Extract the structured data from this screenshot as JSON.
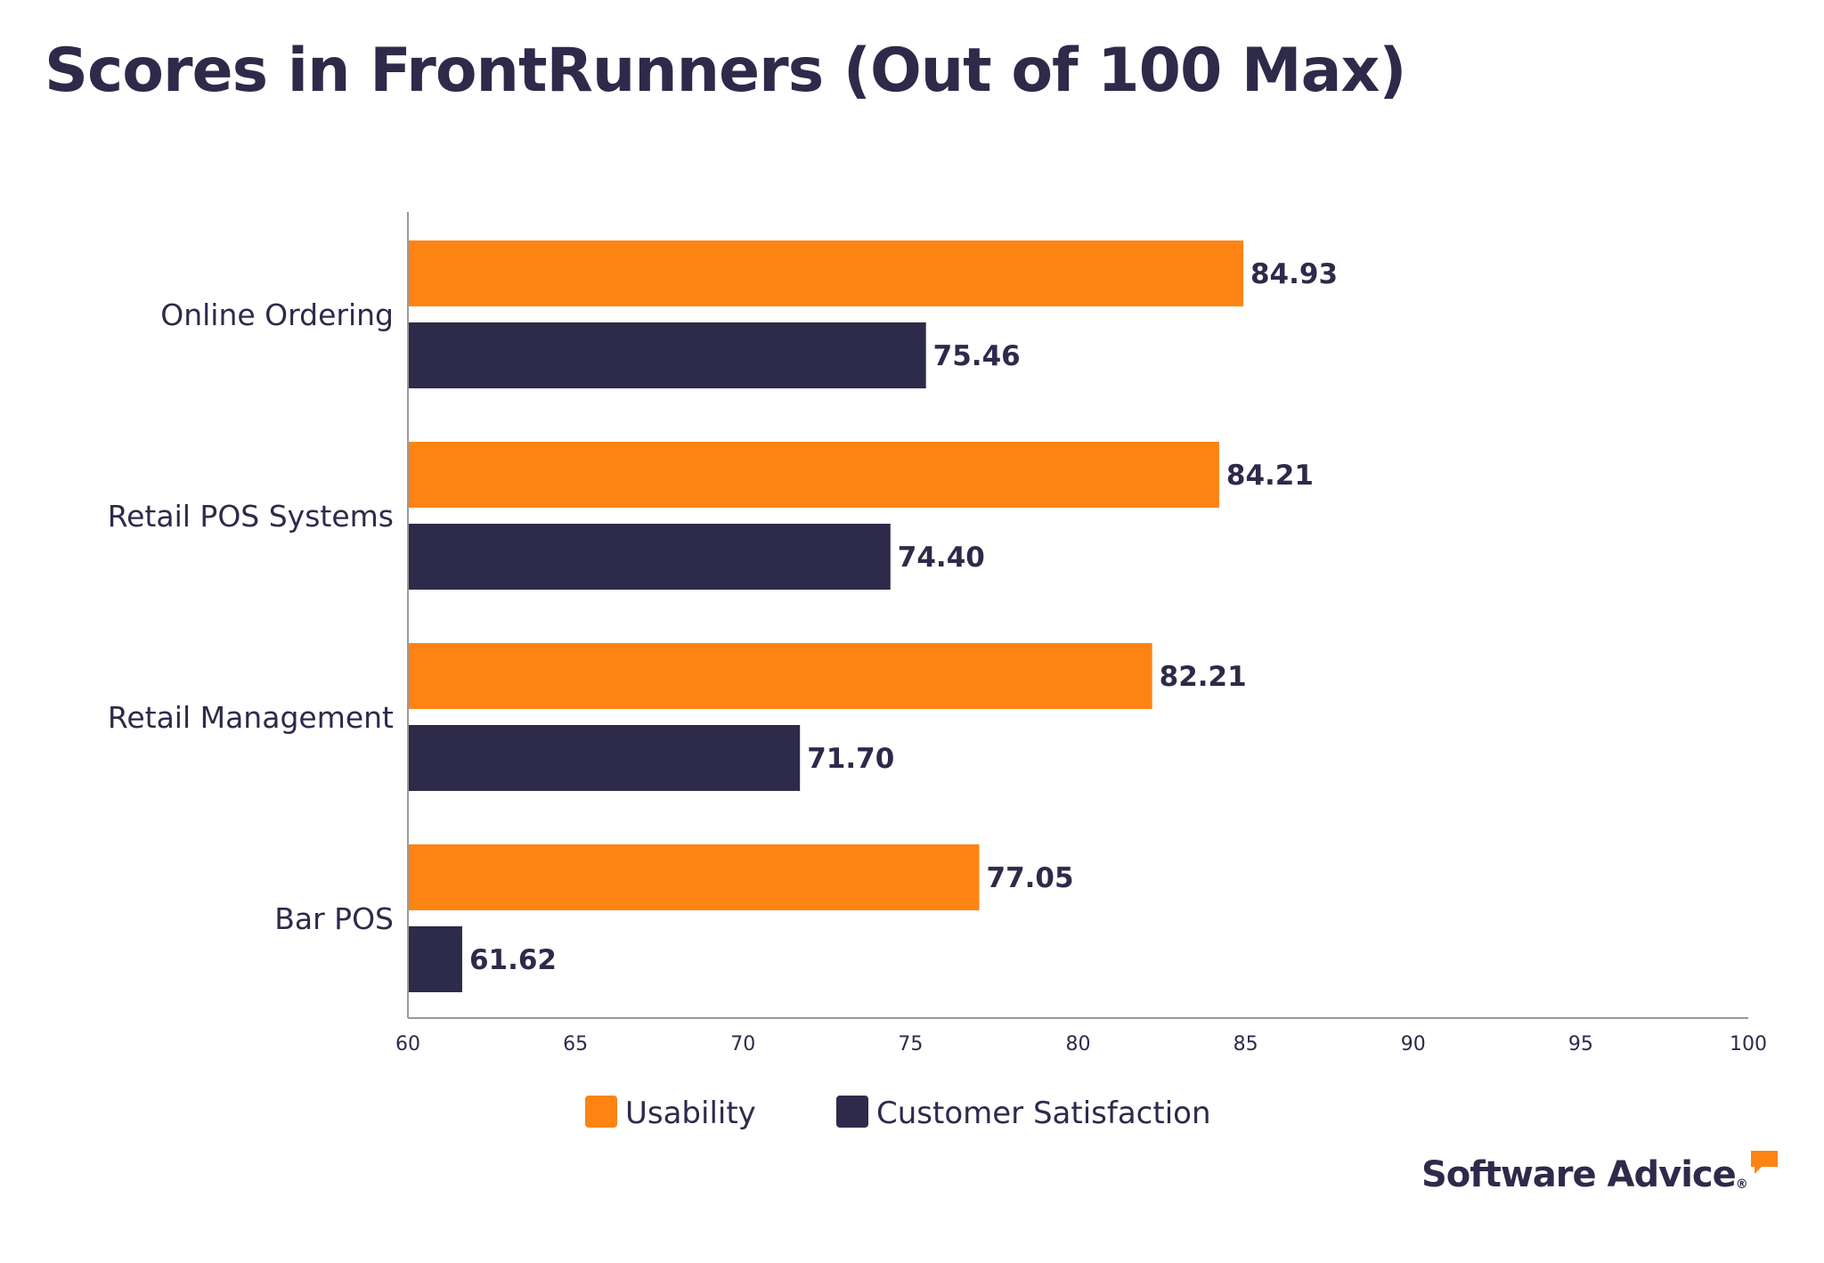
{
  "chart_data": {
    "type": "bar",
    "orientation": "horizontal",
    "title": "Scores in FrontRunners (Out of 100 Max)",
    "categories": [
      "Online Ordering",
      "Retail POS Systems",
      "Retail Management",
      "Bar POS"
    ],
    "series": [
      {
        "name": "Usability",
        "color": "#fd8412",
        "values": [
          84.93,
          84.21,
          82.21,
          77.05
        ],
        "labels": [
          "84.93",
          "84.21",
          "82.21",
          "77.05"
        ]
      },
      {
        "name": "Customer Satisfaction",
        "color": "#2d2a4a",
        "values": [
          75.46,
          74.4,
          71.7,
          61.62
        ],
        "labels": [
          "75.46",
          "74.40",
          "71.70",
          "61.62"
        ]
      }
    ],
    "xlim": [
      60,
      100
    ],
    "xticks": [
      "60",
      "65",
      "70",
      "75",
      "80",
      "85",
      "90",
      "95",
      "100"
    ],
    "xlabel": "",
    "ylabel": "",
    "grid": false,
    "legend_position": "bottom-center"
  },
  "branding": {
    "logo_text": "Software Advice",
    "registered_mark": "®",
    "accent_color": "#fd8412",
    "text_color": "#2d2a4a"
  }
}
